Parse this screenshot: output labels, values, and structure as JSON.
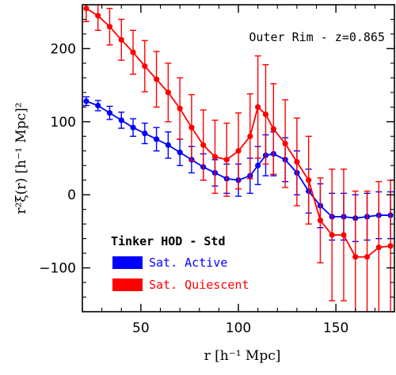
{
  "chart_data": {
    "type": "line",
    "annotation": "Outer Rim - z=0.865",
    "xlabel": "r [h⁻¹ Mpc]",
    "ylabel": "r²ξ(r) [h⁻¹ Mpc]²",
    "xlim": [
      20,
      180
    ],
    "ylim": [
      -160,
      260
    ],
    "xticks": [
      50,
      100,
      150
    ],
    "yticks": [
      -100,
      0,
      100,
      200
    ],
    "grid": false,
    "legend": {
      "title": "Tinker HOD - Std",
      "position": "bottom-left"
    },
    "series": [
      {
        "name": "Sat. Active",
        "color": "#0000ff",
        "x": [
          22,
          28,
          34,
          40,
          46,
          52,
          58,
          64,
          70,
          76,
          82,
          88,
          94,
          100,
          106,
          110,
          114,
          118,
          124,
          130,
          136,
          142,
          148,
          154,
          160,
          166,
          172,
          178
        ],
        "y": [
          128,
          122,
          112,
          102,
          92,
          84,
          76,
          68,
          58,
          48,
          38,
          30,
          22,
          20,
          26,
          40,
          54,
          56,
          48,
          30,
          5,
          -15,
          -30,
          -30,
          -32,
          -30,
          -28,
          -28
        ],
        "err": [
          6,
          7,
          9,
          11,
          12,
          14,
          16,
          18,
          18,
          18,
          18,
          18,
          20,
          22,
          24,
          26,
          28,
          30,
          30,
          30,
          30,
          30,
          32,
          32,
          32,
          32,
          32,
          32
        ]
      },
      {
        "name": "Sat. Quiescent",
        "color": "#ff0000",
        "x": [
          22,
          28,
          34,
          40,
          46,
          52,
          58,
          64,
          70,
          76,
          82,
          88,
          94,
          100,
          106,
          110,
          114,
          118,
          124,
          130,
          136,
          142,
          148,
          154,
          160,
          166,
          172,
          178
        ],
        "y": [
          255,
          245,
          230,
          212,
          195,
          176,
          158,
          140,
          118,
          92,
          68,
          52,
          48,
          60,
          80,
          120,
          110,
          90,
          70,
          45,
          20,
          -35,
          -55,
          -55,
          -85,
          -85,
          -72,
          -70
        ],
        "err": [
          18,
          20,
          25,
          28,
          30,
          35,
          38,
          40,
          42,
          45,
          48,
          50,
          50,
          52,
          58,
          70,
          68,
          62,
          60,
          60,
          60,
          58,
          90,
          90,
          90,
          90,
          90,
          90
        ]
      }
    ]
  }
}
